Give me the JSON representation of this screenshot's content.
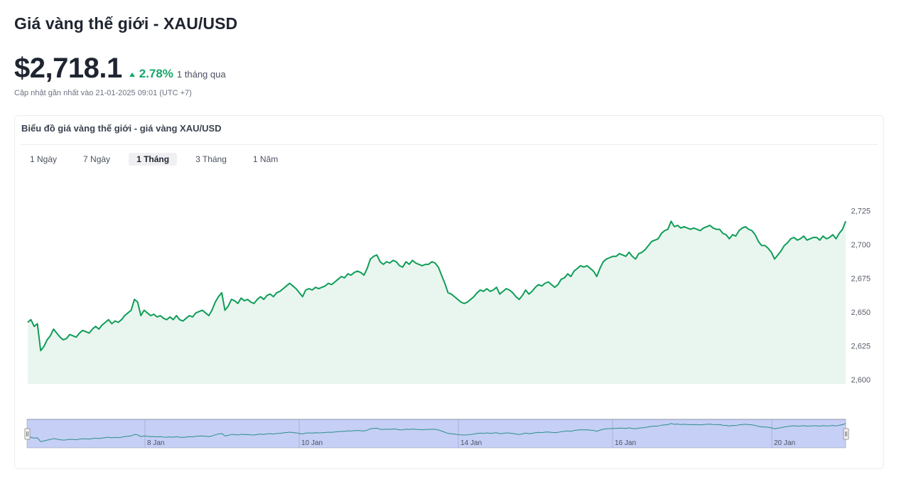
{
  "page": {
    "title": "Giá vàng thế giới - XAU/USD",
    "price": "$2,718.1",
    "change_percent": "2.78%",
    "change_period": "1 tháng qua",
    "updated": "Cập nhật gần nhất vào 21-01-2025 09:01 (UTC +7)"
  },
  "card": {
    "title": "Biểu đồ giá vàng thế giới - giá vàng XAU/USD",
    "tabs": [
      {
        "label": "1 Ngày",
        "active": false
      },
      {
        "label": "7 Ngày",
        "active": false
      },
      {
        "label": "1 Tháng",
        "active": true
      },
      {
        "label": "3 Tháng",
        "active": false
      },
      {
        "label": "1 Năm",
        "active": false
      }
    ]
  },
  "colors": {
    "line": "#0f9d58",
    "area": "#e9f6ef",
    "up": "#18a76a",
    "navigator_fill": "#c6cff5",
    "navigator_border": "#8d93ad"
  },
  "chart_data": {
    "type": "area",
    "ylim": [
      2600,
      2725
    ],
    "yticks": [
      "2,600",
      "2,625",
      "2,650",
      "2,675",
      "2,700",
      "2,725"
    ],
    "navigator_ticks": [
      "8 Jan",
      "10 Jan",
      "14 Jan",
      "16 Jan",
      "20 Jan"
    ],
    "series": [
      {
        "values": [
          2643,
          2645,
          2640,
          2642,
          2622,
          2625,
          2630,
          2633,
          2638,
          2635,
          2632,
          2630,
          2631,
          2634,
          2633,
          2632,
          2635,
          2637,
          2636,
          2635,
          2638,
          2640,
          2638,
          2641,
          2643,
          2645,
          2642,
          2644,
          2643,
          2645,
          2648,
          2650,
          2652,
          2660,
          2658,
          2648,
          2652,
          2650,
          2648,
          2649,
          2647,
          2648,
          2646,
          2645,
          2647,
          2645,
          2648,
          2645,
          2644,
          2646,
          2648,
          2647,
          2650,
          2651,
          2652,
          2650,
          2648,
          2652,
          2658,
          2662,
          2665,
          2652,
          2655,
          2660,
          2659,
          2657,
          2661,
          2659,
          2660,
          2658,
          2657,
          2660,
          2662,
          2660,
          2663,
          2664,
          2662,
          2665,
          2666,
          2668,
          2670,
          2672,
          2670,
          2668,
          2665,
          2662,
          2667,
          2668,
          2667,
          2669,
          2668,
          2669,
          2670,
          2672,
          2671,
          2673,
          2675,
          2677,
          2676,
          2679,
          2678,
          2680,
          2681,
          2680,
          2678,
          2683,
          2690,
          2692,
          2693,
          2688,
          2686,
          2688,
          2687,
          2689,
          2688,
          2685,
          2684,
          2688,
          2686,
          2689,
          2687,
          2686,
          2685,
          2686,
          2686,
          2688,
          2687,
          2684,
          2678,
          2672,
          2665,
          2664,
          2662,
          2660,
          2658,
          2657,
          2658,
          2660,
          2662,
          2665,
          2667,
          2666,
          2668,
          2666,
          2667,
          2669,
          2664,
          2666,
          2668,
          2667,
          2665,
          2662,
          2660,
          2663,
          2667,
          2664,
          2666,
          2669,
          2671,
          2670,
          2672,
          2673,
          2671,
          2669,
          2671,
          2675,
          2676,
          2679,
          2677,
          2681,
          2683,
          2685,
          2684,
          2685,
          2683,
          2681,
          2677,
          2683,
          2688,
          2690,
          2691,
          2692,
          2692,
          2694,
          2693,
          2692,
          2695,
          2692,
          2690,
          2694,
          2695,
          2697,
          2700,
          2703,
          2704,
          2705,
          2709,
          2711,
          2712,
          2718,
          2714,
          2715,
          2713,
          2714,
          2713,
          2712,
          2713,
          2712,
          2711,
          2713,
          2714,
          2715,
          2713,
          2712,
          2712,
          2709,
          2708,
          2705,
          2708,
          2707,
          2711,
          2713,
          2714,
          2712,
          2711,
          2708,
          2703,
          2700,
          2700,
          2698,
          2695,
          2690,
          2693,
          2696,
          2700,
          2702,
          2705,
          2706,
          2704,
          2705,
          2707,
          2704,
          2705,
          2706,
          2706,
          2704,
          2707,
          2705,
          2706,
          2708,
          2705,
          2709,
          2712,
          2718.1
        ]
      }
    ]
  }
}
